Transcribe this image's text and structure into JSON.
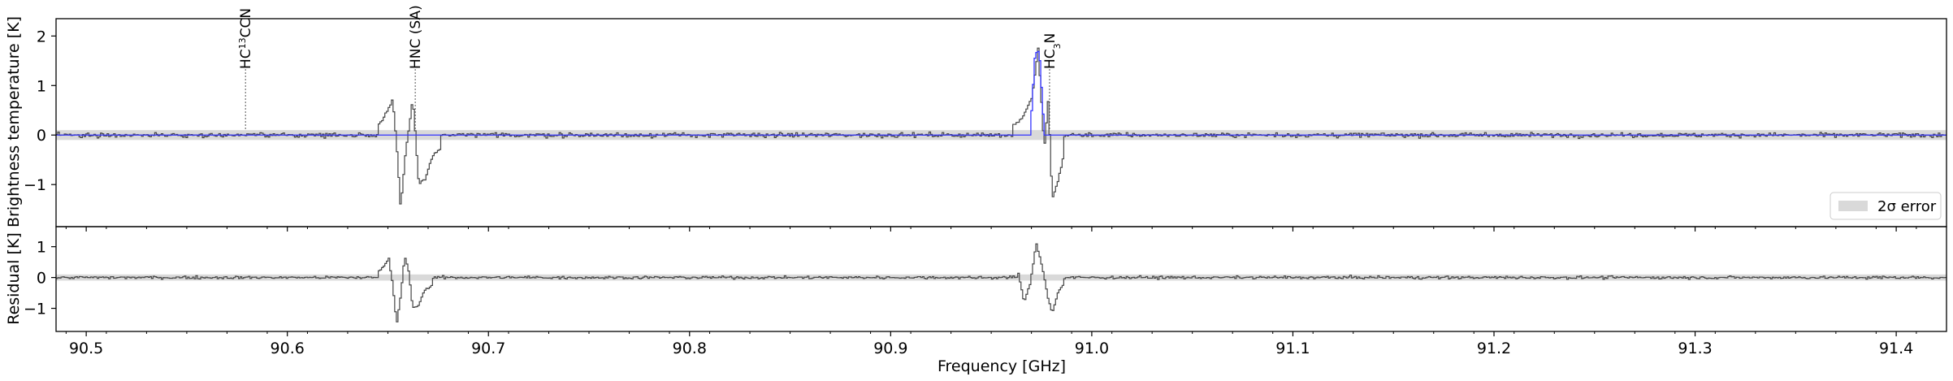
{
  "chart_data": [
    {
      "type": "line",
      "panel": "main",
      "ylabel": "Brightness temperature [K]",
      "xlim": [
        90.485,
        91.425
      ],
      "ylim": [
        -1.85,
        2.35
      ],
      "yticks": [
        -1,
        0,
        1,
        2
      ],
      "ytick_labels": [
        "−1",
        "0",
        "1",
        "2"
      ],
      "grid": false,
      "error_band": 0.1,
      "legend": {
        "placement": "bottom-right",
        "entries": [
          "2σ error"
        ]
      },
      "line_annotations": [
        {
          "freq": 90.5792,
          "label_pre": "HC",
          "label_sup": "13",
          "label_post": "CCN"
        },
        {
          "freq": 90.6636,
          "label_pre": "HNC (SA)",
          "label_sup": "",
          "label_post": ""
        },
        {
          "freq": 90.979,
          "label_pre": "HC",
          "label_sub": "3",
          "label_post": "N"
        }
      ],
      "series": [
        {
          "kind": "observed",
          "color": "#444444",
          "noise_sigma": 0.045,
          "features": [
            {
              "x": [
                90.645,
                90.6475,
                90.65,
                90.652,
                90.654,
                90.656,
                90.658,
                90.66,
                90.662,
                90.665,
                90.668,
                90.672,
                90.676
              ],
              "y": [
                0.2,
                0.35,
                0.55,
                0.72,
                -0.2,
                -1.5,
                -0.5,
                0.1,
                0.75,
                -1.0,
                -0.9,
                -0.4,
                -0.3
              ]
            },
            {
              "x": [
                90.96,
                90.964,
                90.967,
                90.97,
                90.973,
                90.976,
                90.978,
                90.98,
                90.983,
                90.986
              ],
              "y": [
                0.18,
                0.3,
                0.5,
                0.78,
                1.75,
                -0.3,
                0.7,
                -1.3,
                -0.9,
                -0.35
              ]
            }
          ]
        },
        {
          "kind": "model",
          "color": "#3333ff",
          "features": [
            {
              "x": [
                90.969,
                90.9715,
                90.9735,
                90.976
              ],
              "y": [
                0.03,
                1.65,
                1.7,
                0.05
              ]
            }
          ]
        }
      ]
    },
    {
      "type": "line",
      "panel": "residual",
      "ylabel": "Residual [K]",
      "xlabel": "Frequency [GHz]",
      "xlim": [
        90.485,
        91.425
      ],
      "ylim": [
        -1.75,
        1.65
      ],
      "yticks": [
        -1,
        0,
        1
      ],
      "ytick_labels": [
        "−1",
        "0",
        "1"
      ],
      "xticks": [
        90.5,
        90.6,
        90.7,
        90.8,
        90.9,
        91.0,
        91.1,
        91.2,
        91.3,
        91.4
      ],
      "xtick_labels": [
        "90.5",
        "90.6",
        "90.7",
        "90.8",
        "90.9",
        "91.0",
        "91.1",
        "91.2",
        "91.3",
        "91.4"
      ],
      "error_band": 0.1,
      "series": [
        {
          "kind": "residual",
          "color": "#444444",
          "noise_sigma": 0.045,
          "features": [
            {
              "x": [
                90.645,
                90.648,
                90.65,
                90.652,
                90.654,
                90.656,
                90.658,
                90.66,
                90.662,
                90.665,
                90.668,
                90.672
              ],
              "y": [
                0.2,
                0.4,
                0.65,
                -0.2,
                -1.5,
                -0.6,
                0.7,
                0.2,
                -1.0,
                -0.9,
                -0.4,
                -0.25
              ]
            },
            {
              "x": [
                90.963,
                90.966,
                90.969,
                90.972,
                90.975,
                90.978,
                90.98,
                90.983,
                90.986
              ],
              "y": [
                0.2,
                -0.8,
                -0.2,
                1.1,
                0.35,
                -0.7,
                -1.15,
                -0.45,
                -0.2
              ]
            }
          ]
        }
      ]
    }
  ]
}
